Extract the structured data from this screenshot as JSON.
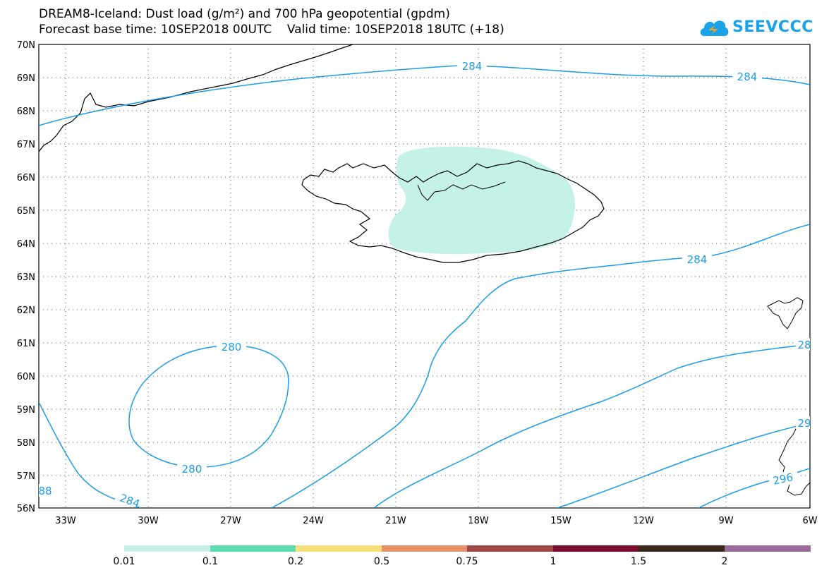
{
  "header": {
    "title_line1": "DREAM8-Iceland: Dust load (g/m²) and 700 hPa geopotential (gpdm)",
    "title_line2": "Forecast base time: 10SEP2018 00UTC    Valid time: 10SEP2018 18UTC (+18)"
  },
  "logo": {
    "text": "SEEVCCC",
    "icon": "cloud-logo-icon",
    "color": "#1aa3e8"
  },
  "map": {
    "lat_labels": [
      "70N",
      "69N",
      "68N",
      "67N",
      "66N",
      "65N",
      "64N",
      "63N",
      "62N",
      "61N",
      "60N",
      "59N",
      "58N",
      "57N",
      "56N"
    ],
    "lon_labels": [
      "33W",
      "30W",
      "27W",
      "24W",
      "21W",
      "18W",
      "15W",
      "12W",
      "9W",
      "6W"
    ],
    "contour_color": "#1a9de6",
    "contour_labels": [
      "284",
      "284",
      "284",
      "280",
      "280",
      "284",
      "88",
      "28",
      "29",
      "296"
    ]
  },
  "legend": {
    "boundaries": [
      "0.01",
      "0.1",
      "0.2",
      "0.5",
      "0.75",
      "1",
      "1.5",
      "2"
    ],
    "colors": [
      "#c4f2e8",
      "#5ddcb0",
      "#f7e07a",
      "#e8906a",
      "#a04848",
      "#7a0c2e",
      "#3a2a1a",
      "#9a6a9a"
    ]
  }
}
